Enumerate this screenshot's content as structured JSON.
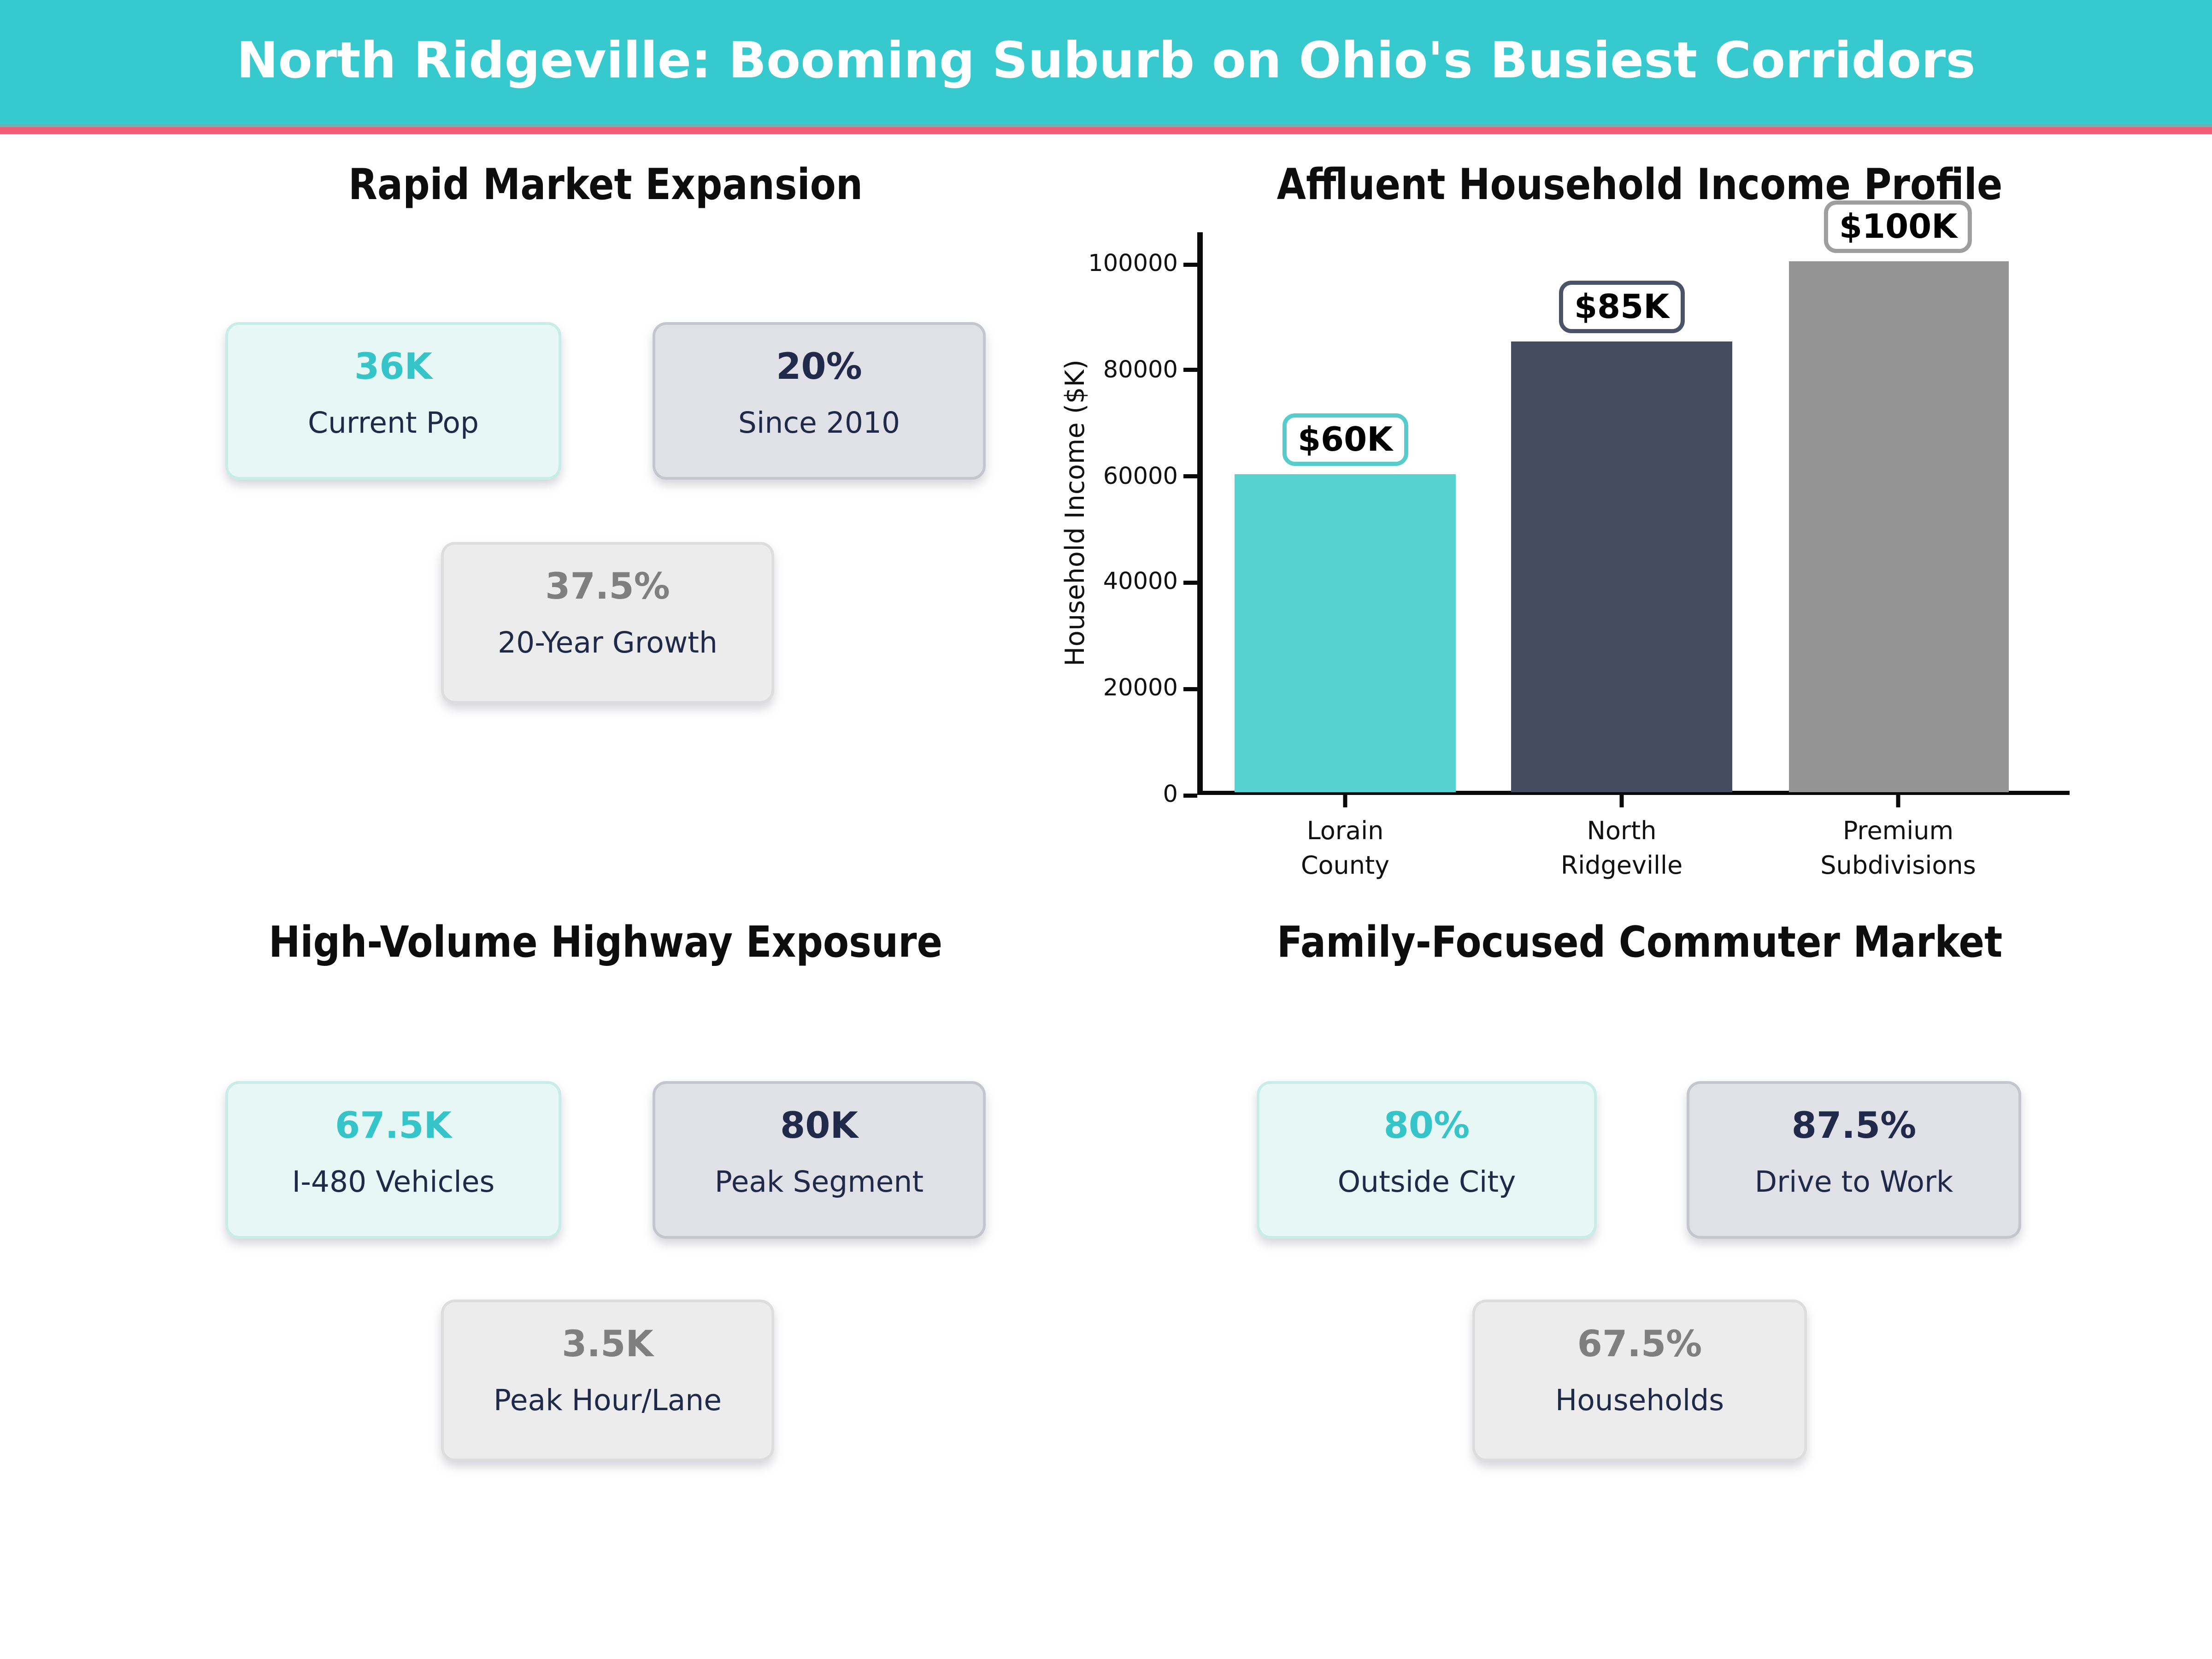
{
  "header": {
    "title": "North Ridgeville: Booming Suburb on Ohio's Busiest Corridors",
    "background_color": "#36C9CD",
    "accent_stripe_color": "#F05D75"
  },
  "palette": {
    "teal_value": "#35C4C7",
    "navy_value": "#212A4B",
    "gray_value": "#7F7F7F",
    "card_label_navy": "#1F2A4A",
    "teal_card_bg": "#E6F7F5",
    "navy_card_bg": "#E0E1E7",
    "gray_card_bg": "#ECECEC"
  },
  "panels": {
    "market": {
      "title": "Rapid Market Expansion",
      "cards": [
        {
          "value": "36K",
          "label": "Current Pop",
          "style": "teal"
        },
        {
          "value": "20%",
          "label": "Since 2010",
          "style": "navy"
        },
        {
          "value": "37.5%",
          "label": "20-Year Growth",
          "style": "gray"
        }
      ]
    },
    "income": {
      "title": "Affluent Household Income Profile"
    },
    "highway": {
      "title": "High-Volume Highway Exposure",
      "cards": [
        {
          "value": "67.5K",
          "label": "I-480 Vehicles",
          "style": "teal"
        },
        {
          "value": "80K",
          "label": "Peak Segment",
          "style": "navy"
        },
        {
          "value": "3.5K",
          "label": "Peak Hour/Lane",
          "style": "gray"
        }
      ]
    },
    "commuter": {
      "title": "Family-Focused Commuter Market",
      "cards": [
        {
          "value": "80%",
          "label": "Outside City",
          "style": "teal"
        },
        {
          "value": "87.5%",
          "label": "Drive to Work",
          "style": "navy"
        },
        {
          "value": "67.5%",
          "label": "Households",
          "style": "gray"
        }
      ]
    }
  },
  "chart_data": {
    "type": "bar",
    "title": "Affluent Household Income Profile",
    "categories": [
      "Lorain County",
      "North Ridgeville",
      "Premium Subdivisions"
    ],
    "category_lines": [
      [
        "Lorain",
        "County"
      ],
      [
        "North",
        "Ridgeville"
      ],
      [
        "Premium",
        "Subdivisions"
      ]
    ],
    "values": [
      60000,
      85000,
      100000
    ],
    "bar_labels": [
      "$60K",
      "$85K",
      "$100K"
    ],
    "bar_colors": [
      "#57D2D0",
      "#454C61",
      "#949494"
    ],
    "bar_label_border_colors": [
      "#57CCCB",
      "#4C5368",
      "#9E9E9E"
    ],
    "xlabel": "",
    "ylabel": "Household Income ($K)",
    "yticks": [
      0,
      20000,
      40000,
      60000,
      80000,
      100000
    ],
    "ylim": [
      0,
      106000
    ],
    "grid": false,
    "legend": false
  }
}
